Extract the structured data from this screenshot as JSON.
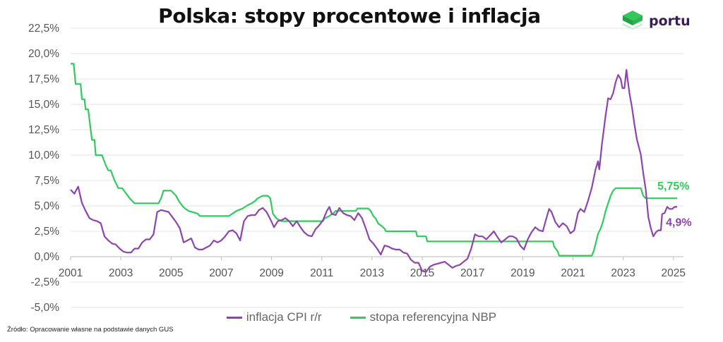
{
  "title": "Polska: stopy procentowe i inflacja",
  "brand": {
    "name": "portu",
    "color": "#3b1a5a",
    "icon": "portu-cube-logo-icon"
  },
  "source": "Źródło:  Opracowanie własne na podstawie danych GUS",
  "colors": {
    "cpi": "#8e44ad",
    "rate": "#2ecc5b",
    "grid": "#e6e6e6"
  },
  "chart_data": {
    "type": "line",
    "title": "Polska: stopy procentowe i inflacja",
    "xlabel": "",
    "ylabel": "",
    "xlim": [
      2001,
      2025.4
    ],
    "ylim": [
      -5,
      22.5
    ],
    "x_ticks": [
      "2001",
      "2003",
      "2005",
      "2007",
      "2009",
      "2011",
      "2013",
      "2015",
      "2017",
      "2019",
      "2021",
      "2023",
      "2025"
    ],
    "y_ticks": [
      "22,5%",
      "20,0%",
      "17,5%",
      "15,0%",
      "12,5%",
      "10,0%",
      "7,5%",
      "5,0%",
      "2,5%",
      "0,0%",
      "-2,5%",
      "-5,0%"
    ],
    "grid": true,
    "legend_position": "bottom",
    "annotations": [
      {
        "text": "5,75%",
        "series": "stopa referencyjna NBP"
      },
      {
        "text": "4,9%",
        "series": "inflacja CPI r/r"
      }
    ],
    "series": [
      {
        "name": "inflacja CPI r/r",
        "points": [
          [
            2001.0,
            6.6
          ],
          [
            2001.15,
            6.2
          ],
          [
            2001.3,
            6.9
          ],
          [
            2001.45,
            5.3
          ],
          [
            2001.6,
            4.5
          ],
          [
            2001.75,
            3.8
          ],
          [
            2001.9,
            3.6
          ],
          [
            2002.05,
            3.5
          ],
          [
            2002.2,
            3.3
          ],
          [
            2002.35,
            2.0
          ],
          [
            2002.5,
            1.6
          ],
          [
            2002.65,
            1.3
          ],
          [
            2002.8,
            1.2
          ],
          [
            2002.95,
            0.8
          ],
          [
            2003.1,
            0.5
          ],
          [
            2003.25,
            0.4
          ],
          [
            2003.4,
            0.4
          ],
          [
            2003.55,
            0.8
          ],
          [
            2003.7,
            0.8
          ],
          [
            2003.85,
            1.4
          ],
          [
            2004.0,
            1.7
          ],
          [
            2004.15,
            1.7
          ],
          [
            2004.3,
            2.2
          ],
          [
            2004.45,
            4.4
          ],
          [
            2004.6,
            4.6
          ],
          [
            2004.75,
            4.5
          ],
          [
            2004.9,
            4.4
          ],
          [
            2005.05,
            3.9
          ],
          [
            2005.2,
            3.4
          ],
          [
            2005.35,
            2.8
          ],
          [
            2005.5,
            1.4
          ],
          [
            2005.65,
            1.6
          ],
          [
            2005.8,
            1.8
          ],
          [
            2005.95,
            0.9
          ],
          [
            2006.1,
            0.7
          ],
          [
            2006.25,
            0.7
          ],
          [
            2006.4,
            0.9
          ],
          [
            2006.55,
            1.1
          ],
          [
            2006.7,
            1.6
          ],
          [
            2006.85,
            1.4
          ],
          [
            2007.0,
            1.6
          ],
          [
            2007.15,
            2.0
          ],
          [
            2007.3,
            2.5
          ],
          [
            2007.45,
            2.6
          ],
          [
            2007.6,
            2.3
          ],
          [
            2007.75,
            1.6
          ],
          [
            2007.9,
            3.5
          ],
          [
            2008.05,
            4.0
          ],
          [
            2008.2,
            4.1
          ],
          [
            2008.35,
            4.1
          ],
          [
            2008.5,
            4.6
          ],
          [
            2008.65,
            4.8
          ],
          [
            2008.8,
            4.4
          ],
          [
            2008.95,
            3.7
          ],
          [
            2009.1,
            2.9
          ],
          [
            2009.25,
            3.5
          ],
          [
            2009.4,
            3.6
          ],
          [
            2009.55,
            3.8
          ],
          [
            2009.7,
            3.5
          ],
          [
            2009.85,
            3.0
          ],
          [
            2010.0,
            3.5
          ],
          [
            2010.15,
            2.9
          ],
          [
            2010.3,
            2.4
          ],
          [
            2010.45,
            2.1
          ],
          [
            2010.6,
            2.0
          ],
          [
            2010.75,
            2.7
          ],
          [
            2010.9,
            3.1
          ],
          [
            2011.05,
            3.6
          ],
          [
            2011.2,
            4.5
          ],
          [
            2011.3,
            4.9
          ],
          [
            2011.4,
            4.2
          ],
          [
            2011.55,
            4.1
          ],
          [
            2011.7,
            4.8
          ],
          [
            2011.85,
            4.3
          ],
          [
            2012.0,
            4.1
          ],
          [
            2012.15,
            4.0
          ],
          [
            2012.3,
            3.6
          ],
          [
            2012.45,
            4.3
          ],
          [
            2012.6,
            3.8
          ],
          [
            2012.75,
            2.8
          ],
          [
            2012.9,
            1.7
          ],
          [
            2013.05,
            1.3
          ],
          [
            2013.2,
            0.8
          ],
          [
            2013.35,
            0.2
          ],
          [
            2013.5,
            1.1
          ],
          [
            2013.65,
            1.0
          ],
          [
            2013.8,
            0.8
          ],
          [
            2013.95,
            0.7
          ],
          [
            2014.1,
            0.7
          ],
          [
            2014.25,
            0.4
          ],
          [
            2014.4,
            0.3
          ],
          [
            2014.55,
            -0.3
          ],
          [
            2014.7,
            -0.6
          ],
          [
            2014.85,
            -0.6
          ],
          [
            2015.0,
            -1.4
          ],
          [
            2015.15,
            -1.5
          ],
          [
            2015.3,
            -1.0
          ],
          [
            2015.45,
            -0.8
          ],
          [
            2015.6,
            -0.7
          ],
          [
            2015.75,
            -0.6
          ],
          [
            2015.9,
            -0.5
          ],
          [
            2016.05,
            -0.8
          ],
          [
            2016.2,
            -1.1
          ],
          [
            2016.35,
            -0.9
          ],
          [
            2016.5,
            -0.8
          ],
          [
            2016.65,
            -0.5
          ],
          [
            2016.8,
            -0.2
          ],
          [
            2016.95,
            0.8
          ],
          [
            2017.1,
            2.2
          ],
          [
            2017.25,
            2.0
          ],
          [
            2017.4,
            2.0
          ],
          [
            2017.55,
            1.7
          ],
          [
            2017.7,
            2.1
          ],
          [
            2017.85,
            2.5
          ],
          [
            2018.0,
            1.9
          ],
          [
            2018.15,
            1.4
          ],
          [
            2018.3,
            1.7
          ],
          [
            2018.45,
            2.0
          ],
          [
            2018.6,
            2.0
          ],
          [
            2018.75,
            1.8
          ],
          [
            2018.9,
            1.1
          ],
          [
            2019.05,
            0.7
          ],
          [
            2019.2,
            1.7
          ],
          [
            2019.35,
            2.4
          ],
          [
            2019.5,
            2.9
          ],
          [
            2019.65,
            2.6
          ],
          [
            2019.8,
            2.5
          ],
          [
            2019.9,
            3.4
          ],
          [
            2020.05,
            4.7
          ],
          [
            2020.15,
            4.4
          ],
          [
            2020.3,
            3.4
          ],
          [
            2020.45,
            2.9
          ],
          [
            2020.6,
            3.3
          ],
          [
            2020.75,
            3.0
          ],
          [
            2020.9,
            2.3
          ],
          [
            2021.05,
            2.6
          ],
          [
            2021.2,
            4.3
          ],
          [
            2021.3,
            4.7
          ],
          [
            2021.45,
            4.4
          ],
          [
            2021.6,
            5.5
          ],
          [
            2021.75,
            6.8
          ],
          [
            2021.9,
            8.6
          ],
          [
            2022.0,
            9.4
          ],
          [
            2022.05,
            8.6
          ],
          [
            2022.15,
            11.0
          ],
          [
            2022.3,
            13.9
          ],
          [
            2022.4,
            15.6
          ],
          [
            2022.5,
            15.5
          ],
          [
            2022.6,
            16.1
          ],
          [
            2022.7,
            17.2
          ],
          [
            2022.8,
            17.9
          ],
          [
            2022.9,
            17.5
          ],
          [
            2022.97,
            16.6
          ],
          [
            2023.05,
            16.6
          ],
          [
            2023.13,
            18.4
          ],
          [
            2023.25,
            16.1
          ],
          [
            2023.35,
            14.7
          ],
          [
            2023.45,
            13.0
          ],
          [
            2023.55,
            11.5
          ],
          [
            2023.7,
            10.1
          ],
          [
            2023.8,
            8.2
          ],
          [
            2023.9,
            6.6
          ],
          [
            2024.0,
            3.9
          ],
          [
            2024.1,
            2.8
          ],
          [
            2024.2,
            2.0
          ],
          [
            2024.3,
            2.4
          ],
          [
            2024.4,
            2.6
          ],
          [
            2024.5,
            2.6
          ],
          [
            2024.55,
            4.2
          ],
          [
            2024.65,
            4.3
          ],
          [
            2024.75,
            4.9
          ],
          [
            2024.85,
            4.7
          ],
          [
            2024.95,
            4.7
          ],
          [
            2025.05,
            4.9
          ],
          [
            2025.15,
            4.9
          ]
        ]
      },
      {
        "name": "stopa referencyjna NBP",
        "points": [
          [
            2001.0,
            19.0
          ],
          [
            2001.12,
            19.0
          ],
          [
            2001.2,
            17.0
          ],
          [
            2001.4,
            17.0
          ],
          [
            2001.45,
            15.5
          ],
          [
            2001.55,
            15.5
          ],
          [
            2001.6,
            14.5
          ],
          [
            2001.7,
            14.5
          ],
          [
            2001.85,
            11.5
          ],
          [
            2001.95,
            11.5
          ],
          [
            2002.0,
            10.0
          ],
          [
            2002.25,
            10.0
          ],
          [
            2002.4,
            9.0
          ],
          [
            2002.5,
            8.5
          ],
          [
            2002.6,
            8.5
          ],
          [
            2002.75,
            7.5
          ],
          [
            2002.9,
            6.75
          ],
          [
            2003.05,
            6.75
          ],
          [
            2003.2,
            6.25
          ],
          [
            2003.35,
            5.75
          ],
          [
            2003.45,
            5.5
          ],
          [
            2003.55,
            5.25
          ],
          [
            2004.5,
            5.25
          ],
          [
            2004.6,
            5.75
          ],
          [
            2004.7,
            6.5
          ],
          [
            2005.0,
            6.5
          ],
          [
            2005.2,
            6.0
          ],
          [
            2005.3,
            5.5
          ],
          [
            2005.45,
            5.0
          ],
          [
            2005.55,
            4.75
          ],
          [
            2005.7,
            4.5
          ],
          [
            2006.05,
            4.25
          ],
          [
            2006.15,
            4.0
          ],
          [
            2007.3,
            4.0
          ],
          [
            2007.45,
            4.25
          ],
          [
            2007.6,
            4.5
          ],
          [
            2007.85,
            4.75
          ],
          [
            2008.0,
            5.0
          ],
          [
            2008.2,
            5.25
          ],
          [
            2008.35,
            5.5
          ],
          [
            2008.45,
            5.75
          ],
          [
            2008.65,
            6.0
          ],
          [
            2008.85,
            6.0
          ],
          [
            2008.95,
            5.75
          ],
          [
            2009.0,
            5.0
          ],
          [
            2009.05,
            4.25
          ],
          [
            2009.2,
            3.75
          ],
          [
            2009.4,
            3.5
          ],
          [
            2011.05,
            3.5
          ],
          [
            2011.1,
            3.75
          ],
          [
            2011.3,
            4.0
          ],
          [
            2011.45,
            4.25
          ],
          [
            2011.55,
            4.5
          ],
          [
            2012.35,
            4.5
          ],
          [
            2012.42,
            4.75
          ],
          [
            2012.85,
            4.75
          ],
          [
            2012.95,
            4.5
          ],
          [
            2013.0,
            4.25
          ],
          [
            2013.05,
            4.0
          ],
          [
            2013.15,
            3.75
          ],
          [
            2013.25,
            3.25
          ],
          [
            2013.4,
            3.0
          ],
          [
            2013.5,
            2.75
          ],
          [
            2013.55,
            2.5
          ],
          [
            2014.75,
            2.5
          ],
          [
            2014.8,
            2.0
          ],
          [
            2015.15,
            2.0
          ],
          [
            2015.2,
            1.5
          ],
          [
            2020.2,
            1.5
          ],
          [
            2020.25,
            1.0
          ],
          [
            2020.4,
            0.5
          ],
          [
            2020.45,
            0.1
          ],
          [
            2021.75,
            0.1
          ],
          [
            2021.82,
            0.5
          ],
          [
            2021.9,
            1.25
          ],
          [
            2022.0,
            2.25
          ],
          [
            2022.1,
            2.75
          ],
          [
            2022.2,
            3.5
          ],
          [
            2022.3,
            4.5
          ],
          [
            2022.4,
            5.25
          ],
          [
            2022.5,
            6.0
          ],
          [
            2022.6,
            6.5
          ],
          [
            2022.7,
            6.75
          ],
          [
            2023.7,
            6.75
          ],
          [
            2023.8,
            6.0
          ],
          [
            2023.9,
            5.75
          ],
          [
            2025.15,
            5.75
          ]
        ]
      }
    ]
  }
}
